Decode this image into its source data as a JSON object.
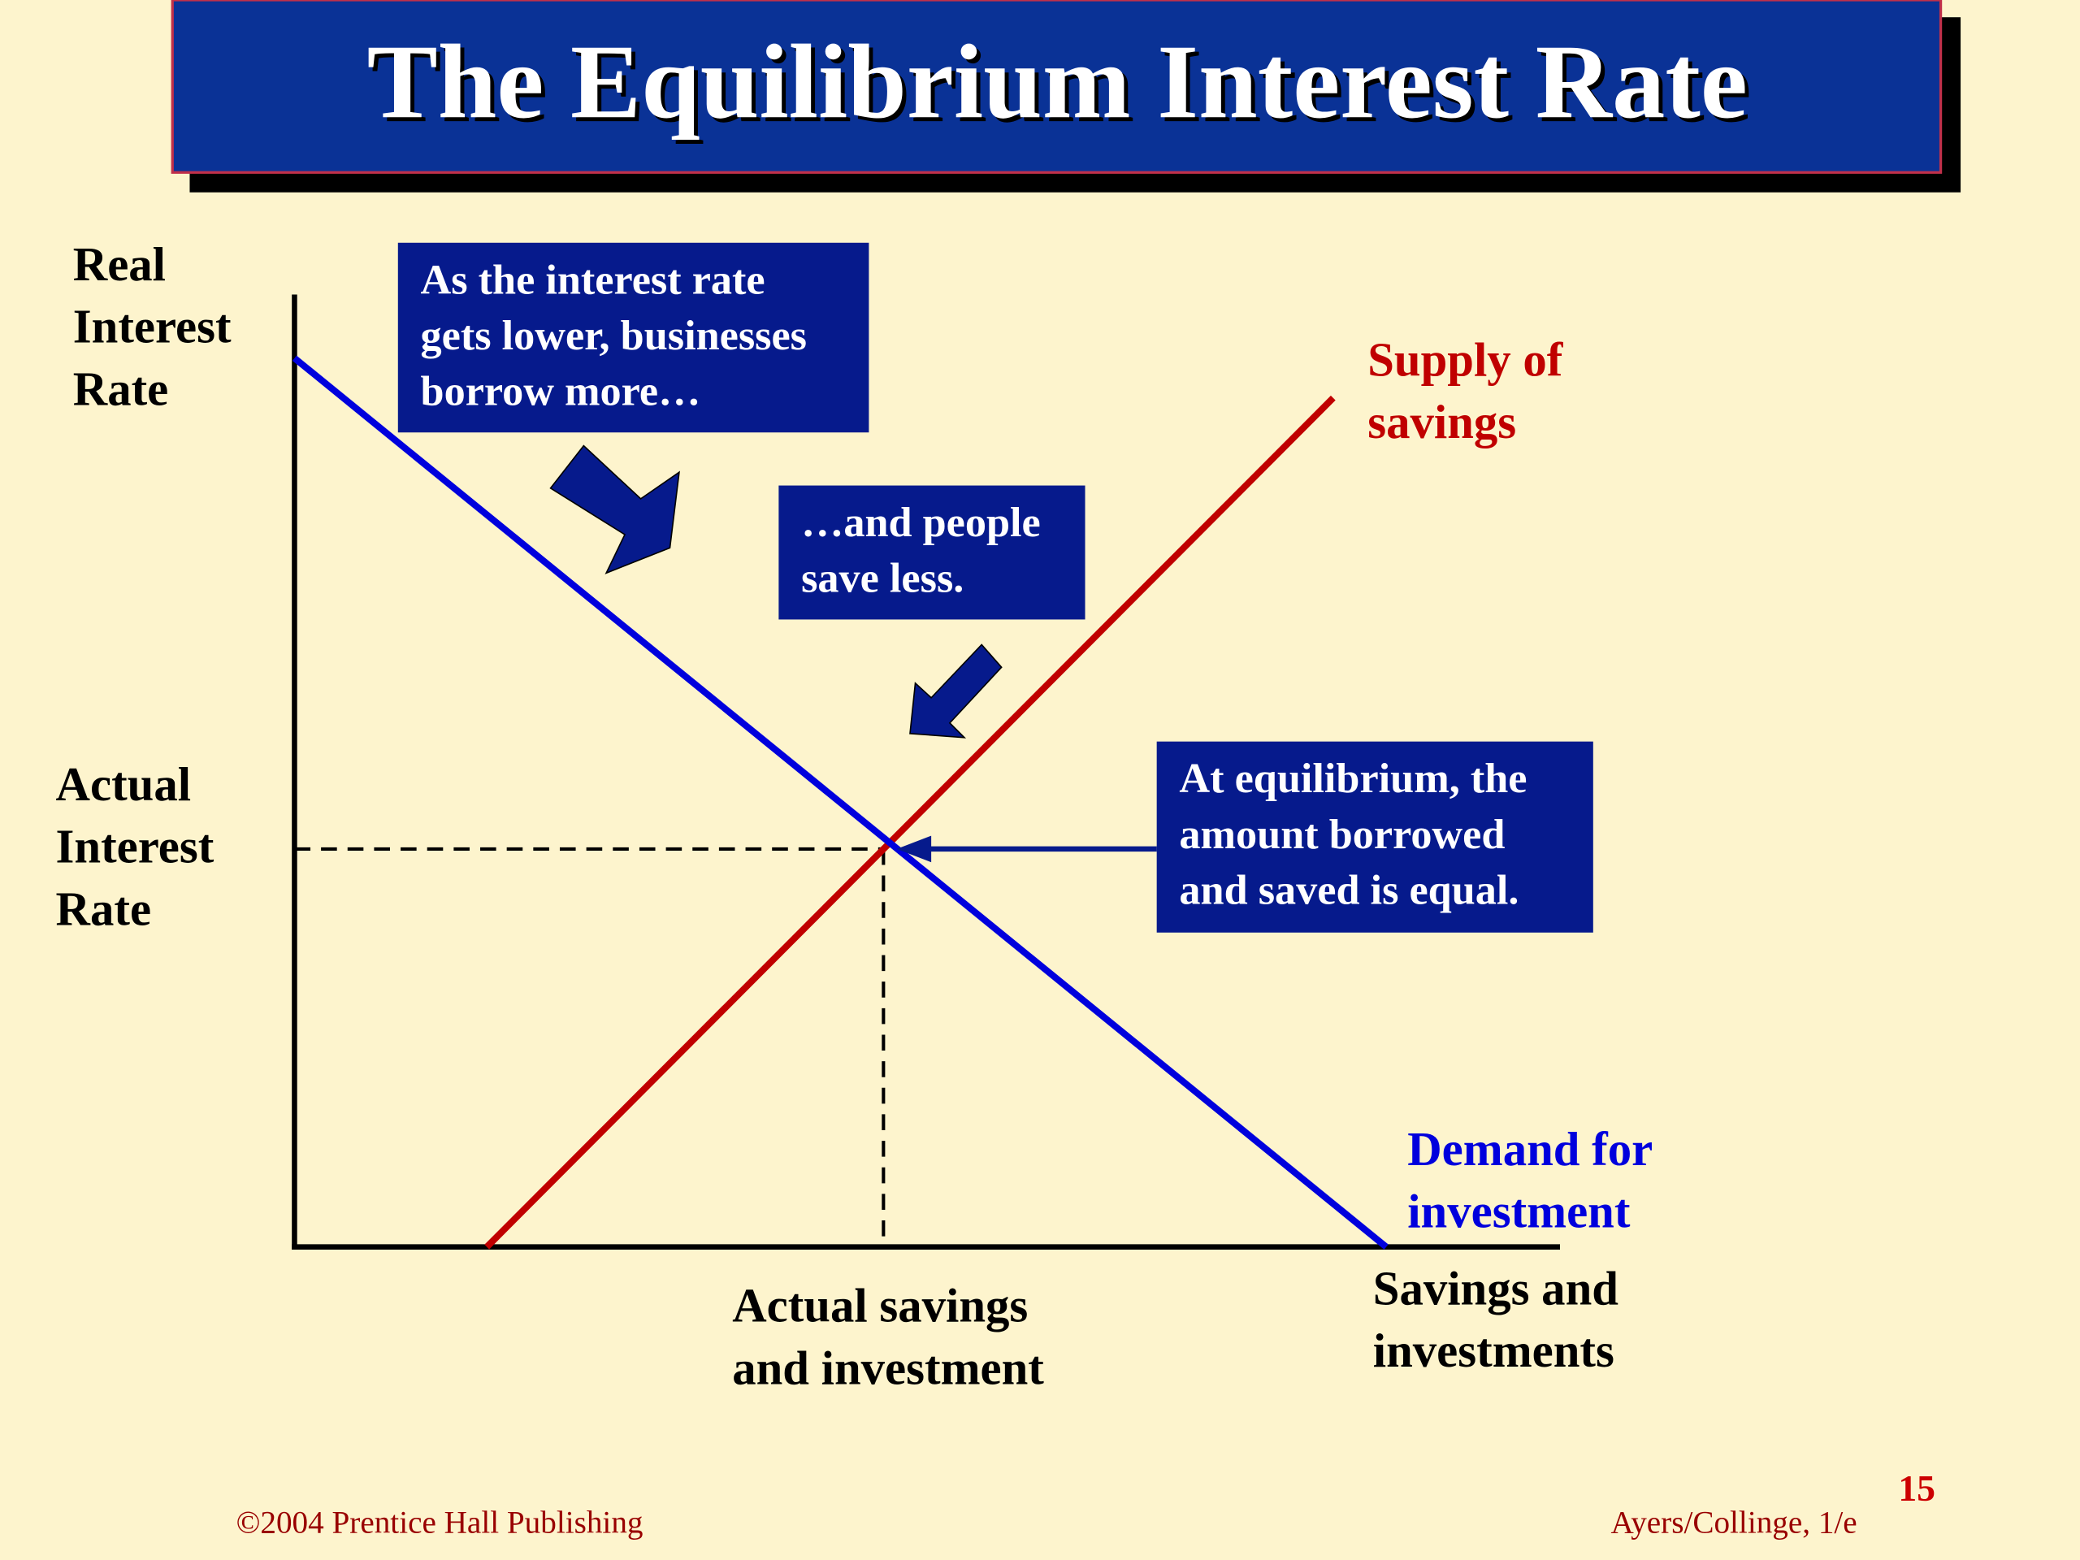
{
  "header": {
    "title": "The Equilibrium Interest Rate"
  },
  "axes": {
    "y_label": [
      "Real",
      "Interest",
      "Rate"
    ],
    "x_label": [
      "Savings and",
      "investments"
    ],
    "equilibrium_rate_label": [
      "Actual",
      "Interest",
      "Rate"
    ],
    "equilibrium_quantity_label": [
      "Actual savings",
      "and investment"
    ]
  },
  "curves": {
    "supply": [
      "Supply of",
      "savings"
    ],
    "demand": [
      "Demand for",
      "investment"
    ]
  },
  "callouts": [
    [
      "As the interest rate",
      "gets lower, businesses",
      "borrow more…"
    ],
    [
      "…and people",
      "save less."
    ],
    [
      "At equilibrium, the",
      "amount borrowed",
      "and saved is equal."
    ]
  ],
  "footer": {
    "copyright": "©2004 Prentice Hall Publishing",
    "authors": "Ayers/Collinge, 1/e",
    "page": "15"
  }
}
